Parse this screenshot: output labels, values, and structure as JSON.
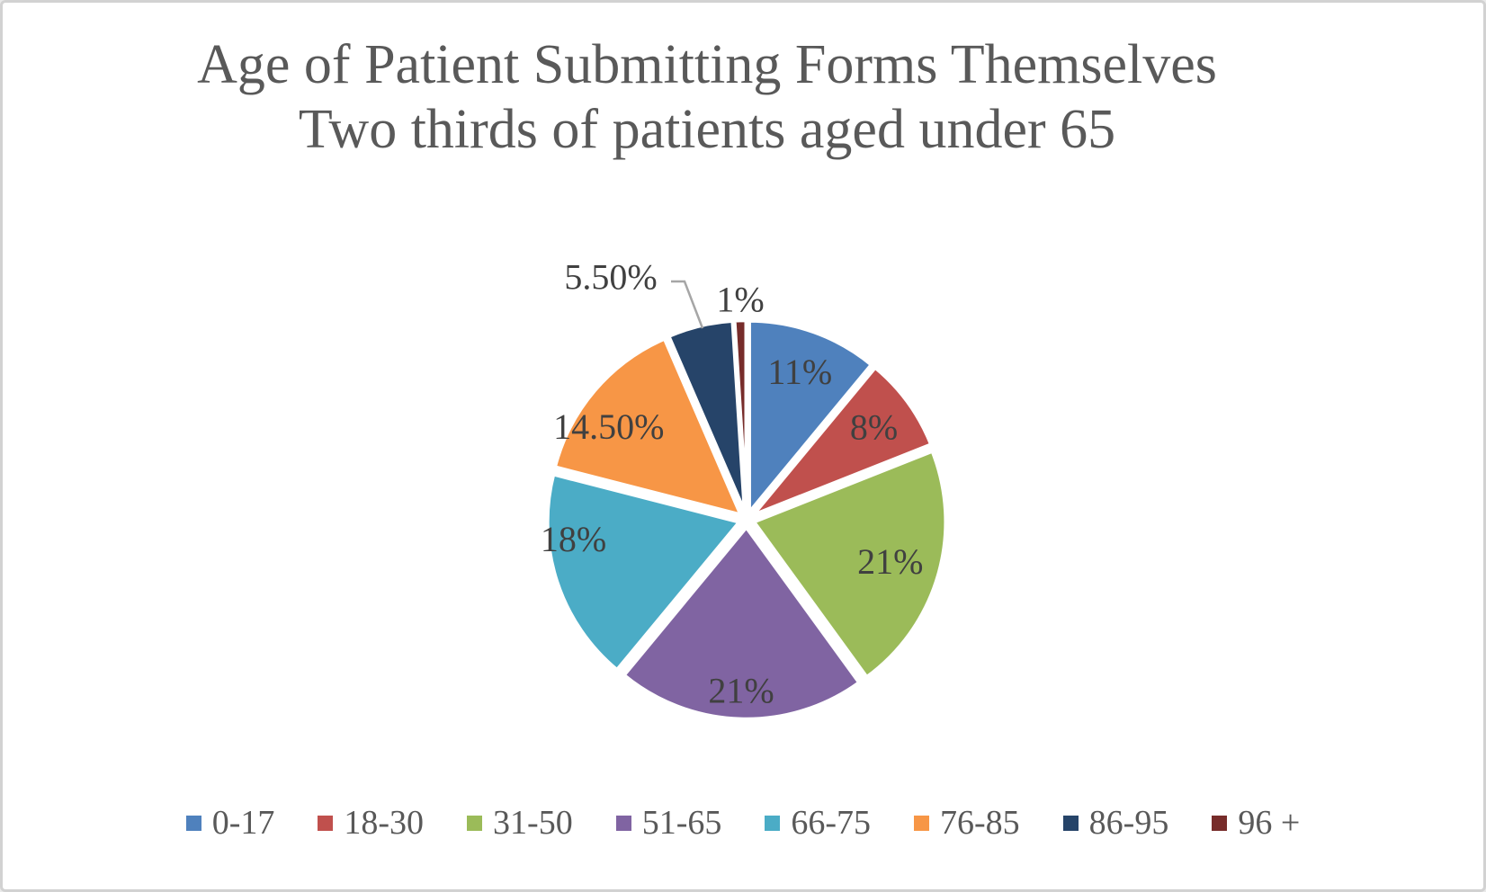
{
  "title": {
    "line1": "Age of Patient Submitting Forms Themselves",
    "line2": "Two thirds of patients aged under 65"
  },
  "colors": {
    "title_text": "#595959",
    "data_label_text": "#404040",
    "leader_line": "#a6a6a6",
    "slice_border": "#ffffff",
    "background": "#ffffff",
    "frame_border": "#d2d2d2"
  },
  "chart_data": {
    "type": "pie",
    "title": "Age of Patient Submitting Forms Themselves",
    "subtitle": "Two thirds of patients aged under 65",
    "categories": [
      "0-17",
      "18-30",
      "31-50",
      "51-65",
      "66-75",
      "76-85",
      "86-95",
      "96 +"
    ],
    "values": [
      11,
      8,
      21,
      21,
      18,
      14.5,
      5.5,
      1
    ],
    "data_labels": [
      "11%",
      "8%",
      "21%",
      "21%",
      "18%",
      "14.50%",
      "5.50%",
      "1%"
    ],
    "slice_colors": [
      "#4F81BD",
      "#C0504D",
      "#9BBB59",
      "#8064A2",
      "#4BACC6",
      "#F79646",
      "#264469",
      "#772C2A"
    ],
    "label_placement": [
      "inside",
      "inside",
      "inside",
      "inside",
      "inside",
      "inside",
      "outside-leader",
      "outside"
    ],
    "start_angle_deg": 0,
    "direction": "clockwise",
    "legend_position": "bottom",
    "grid": false
  }
}
